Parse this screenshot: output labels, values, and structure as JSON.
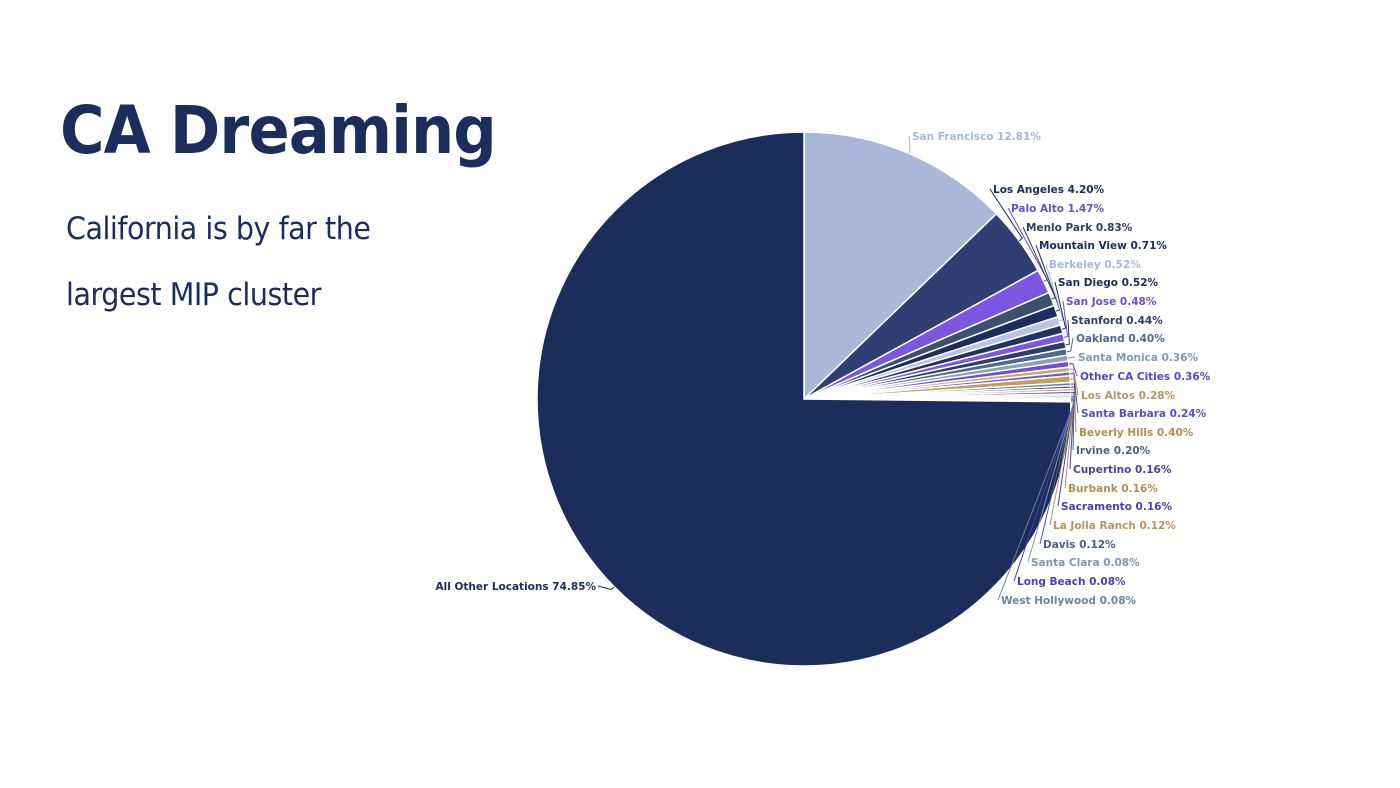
{
  "slide": {
    "title": "CA Dreaming",
    "subtitle": "California is by far the largest MIP cluster"
  },
  "chart_data": {
    "type": "pie",
    "title": "",
    "start_angle_deg": 0,
    "direction": "clockwise",
    "slices": [
      {
        "label": "San Francisco",
        "pct_label": "12.81%",
        "value": 12.81,
        "color": "#a9b7d9",
        "label_color": "#a9b7d9"
      },
      {
        "label": "Los Angeles",
        "pct_label": "4.20%",
        "value": 4.2,
        "color": "#2f3f73",
        "label_color": "#1b2d5b"
      },
      {
        "label": "Palo Alto",
        "pct_label": "1.47%",
        "value": 1.47,
        "color": "#7b57e0",
        "label_color": "#6a4fd0"
      },
      {
        "label": "Menlo Park",
        "pct_label": "0.83%",
        "value": 0.83,
        "color": "#3c5070",
        "label_color": "#2f3f63"
      },
      {
        "label": "Mountain View",
        "pct_label": "0.71%",
        "value": 0.71,
        "color": "#1b2d5b",
        "label_color": "#1b2d5b"
      },
      {
        "label": "Berkeley",
        "pct_label": "0.52%",
        "value": 0.52,
        "color": "#b8c4e0",
        "label_color": "#a9b7d9"
      },
      {
        "label": "San Diego",
        "pct_label": "0.52%",
        "value": 0.52,
        "color": "#23335f",
        "label_color": "#1b2d5b"
      },
      {
        "label": "San Jose",
        "pct_label": "0.48%",
        "value": 0.48,
        "color": "#7b57e0",
        "label_color": "#6a4fd0"
      },
      {
        "label": "Stanford",
        "pct_label": "0.44%",
        "value": 0.44,
        "color": "#2c3d6a",
        "label_color": "#2f3f63"
      },
      {
        "label": "Oakland",
        "pct_label": "0.40%",
        "value": 0.4,
        "color": "#4e6690",
        "label_color": "#4e6690"
      },
      {
        "label": "Santa Monica",
        "pct_label": "0.36%",
        "value": 0.36,
        "color": "#8aa3b8",
        "label_color": "#7f98ae"
      },
      {
        "label": "Other CA Cities",
        "pct_label": "0.36%",
        "value": 0.36,
        "color": "#6b4fd6",
        "label_color": "#5b43c8"
      },
      {
        "label": "Los Altos",
        "pct_label": "0.28%",
        "value": 0.28,
        "color": "#c9a96a",
        "label_color": "#b8965a"
      },
      {
        "label": "Santa Barbara",
        "pct_label": "0.24%",
        "value": 0.24,
        "color": "#6a5ad0",
        "label_color": "#5b4fc0"
      },
      {
        "label": "Beverly Hills",
        "pct_label": "0.40%",
        "value": 0.4,
        "color": "#c2a062",
        "label_color": "#b0904f"
      },
      {
        "label": "Irvine",
        "pct_label": "0.20%",
        "value": 0.2,
        "color": "#6f7fa0",
        "label_color": "#4e5f80"
      },
      {
        "label": "Cupertino",
        "pct_label": "0.16%",
        "value": 0.16,
        "color": "#5546b8",
        "label_color": "#4a3fa8"
      },
      {
        "label": "Burbank",
        "pct_label": "0.16%",
        "value": 0.16,
        "color": "#c2a062",
        "label_color": "#b0904f"
      },
      {
        "label": "Sacramento",
        "pct_label": "0.16%",
        "value": 0.16,
        "color": "#5a4bc0",
        "label_color": "#4a3fa8"
      },
      {
        "label": "La Jolla Ranch",
        "pct_label": "0.12%",
        "value": 0.12,
        "color": "#c9a96a",
        "label_color": "#b8965a"
      },
      {
        "label": "Davis",
        "pct_label": "0.12%",
        "value": 0.12,
        "color": "#5a6a8a",
        "label_color": "#4e5f80"
      },
      {
        "label": "Santa Clara",
        "pct_label": "0.08%",
        "value": 0.08,
        "color": "#8aa3b8",
        "label_color": "#7f98ae"
      },
      {
        "label": "Long Beach",
        "pct_label": "0.08%",
        "value": 0.08,
        "color": "#5546c8",
        "label_color": "#4a3fb8"
      },
      {
        "label": "West Hollywood",
        "pct_label": "0.08%",
        "value": 0.08,
        "color": "#7f93a8",
        "label_color": "#6f849a"
      },
      {
        "label": "All Other Locations",
        "pct_label": "74.85%",
        "value": 74.85,
        "color": "#1b2d5b",
        "label_color": "#1b2d5b"
      }
    ]
  }
}
